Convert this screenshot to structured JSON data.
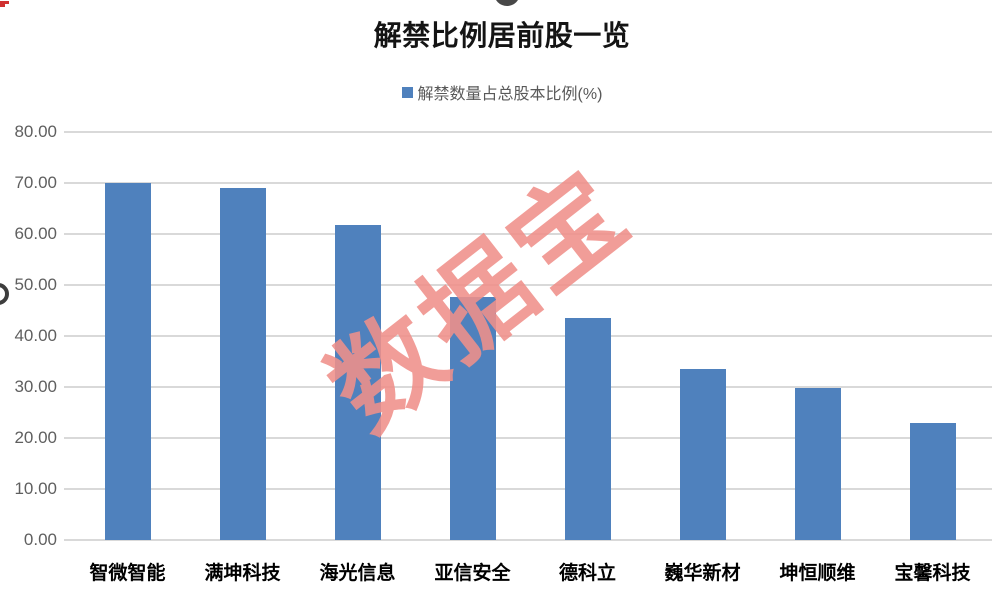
{
  "header": {
    "title": "解禁比例居前股一览"
  },
  "legend": {
    "marker_color": "#4F81BD",
    "label": "解禁数量占总股本比例(%)"
  },
  "watermark": {
    "text": "数据宝",
    "color": "#F0908A"
  },
  "decorations": {
    "top_dot_color": "#484848",
    "corner_fragment_color": "#d03030",
    "axis_glyph_color": "#3d3d3d"
  },
  "chart_data": {
    "type": "bar",
    "title": "解禁比例居前股一览",
    "series_name": "解禁数量占总股本比例(%)",
    "categories": [
      "智微智能",
      "满坤科技",
      "海光信息",
      "亚信安全",
      "德科立",
      "巍华新材",
      "坤恒顺维",
      "宝馨科技"
    ],
    "values": [
      70.0,
      69.0,
      61.8,
      47.6,
      43.5,
      33.5,
      29.8,
      23.0
    ],
    "xlabel": "",
    "ylabel": "",
    "ylim": [
      0,
      80
    ],
    "ytick_step": 10,
    "ytick_decimals": 2,
    "grid": true,
    "legend_position": "top",
    "bar_color": "#4F81BD",
    "grid_color": "#D9D9D9",
    "tick_label_color": "#5f5f5f",
    "category_label_color": "#000000"
  }
}
